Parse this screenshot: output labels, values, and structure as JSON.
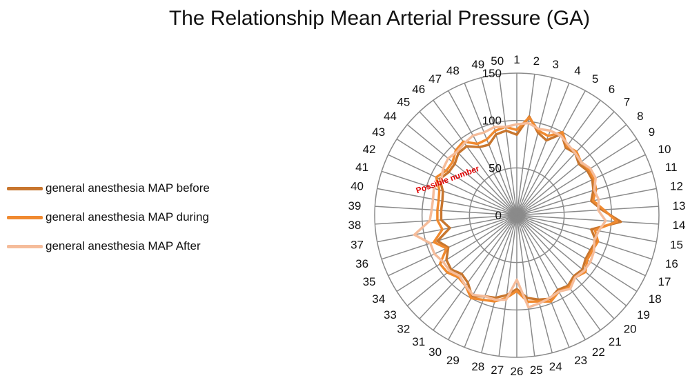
{
  "chart_data": {
    "type": "radar",
    "title": "The Relationship Mean Arterial Pressure (GA)",
    "annotation": "Possible number",
    "categories": [
      "1",
      "2",
      "3",
      "4",
      "5",
      "6",
      "7",
      "8",
      "9",
      "10",
      "11",
      "12",
      "13",
      "14",
      "15",
      "16",
      "17",
      "18",
      "19",
      "20",
      "21",
      "22",
      "23",
      "24",
      "25",
      "26",
      "27",
      "28",
      "29",
      "30",
      "31",
      "32",
      "33",
      "34",
      "35",
      "36",
      "37",
      "38",
      "39",
      "40",
      "41",
      "42",
      "43",
      "44",
      "45",
      "46",
      "47",
      "48",
      "49",
      "50"
    ],
    "radial_ticks": [
      0,
      50,
      100,
      150
    ],
    "rlim": [
      0,
      150
    ],
    "grid": true,
    "legend_position": "left",
    "series": [
      {
        "name": "general anesthesia MAP before",
        "color": "#c8762e",
        "values": [
          85,
          105,
          90,
          85,
          98,
          88,
          90,
          85,
          88,
          88,
          85,
          80,
          90,
          110,
          80,
          88,
          86,
          86,
          90,
          88,
          92,
          90,
          95,
          92,
          88,
          78,
          85,
          90,
          92,
          98,
          88,
          85,
          90,
          88,
          80,
          88,
          72,
          80,
          80,
          80,
          82,
          90,
          85,
          85,
          90,
          90,
          82,
          80,
          88,
          90
        ]
      },
      {
        "name": "general anesthesia MAP during",
        "color": "#f08a30",
        "values": [
          90,
          104,
          92,
          90,
          100,
          90,
          92,
          88,
          90,
          90,
          88,
          82,
          92,
          106,
          84,
          90,
          88,
          88,
          94,
          90,
          94,
          92,
          98,
          94,
          92,
          80,
          88,
          94,
          96,
          100,
          92,
          90,
          95,
          96,
          82,
          92,
          80,
          84,
          84,
          84,
          86,
          94,
          88,
          88,
          94,
          96,
          86,
          86,
          92,
          94
        ]
      },
      {
        "name": "general anesthesia MAP After",
        "color": "#f5bc9a",
        "values": [
          96,
          98,
          94,
          96,
          96,
          92,
          90,
          88,
          92,
          92,
          86,
          88,
          86,
          94,
          88,
          86,
          90,
          92,
          92,
          90,
          96,
          92,
          94,
          96,
          98,
          68,
          90,
          92,
          92,
          96,
          92,
          88,
          92,
          92,
          96,
          96,
          110,
          92,
          90,
          90,
          92,
          88,
          92,
          94,
          92,
          94,
          96,
          94,
          96,
          94
        ]
      }
    ]
  }
}
